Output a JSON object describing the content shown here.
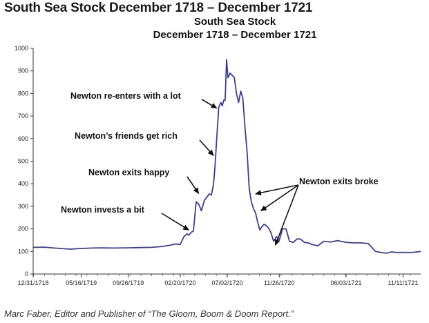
{
  "page": {
    "heading": "South Sea Stock December 1718 – December 1721",
    "caption": "Marc Faber, Editor and Publisher of “The Gloom, Boom & Doom Report.”"
  },
  "chart_data": {
    "type": "line",
    "title_lines": [
      "South Sea Stock",
      "December 1718 – December 1721"
    ],
    "xlabel": "",
    "ylabel": "",
    "ylim": [
      0,
      1000
    ],
    "yticks": [
      0,
      100,
      200,
      300,
      400,
      500,
      600,
      700,
      800,
      900,
      1000
    ],
    "xlim": [
      "1718-12-31",
      "1721-12-31"
    ],
    "xtick_labels": [
      "12/31/1718",
      "05/16/1719",
      "09/26/1719",
      "02/20/1720",
      "07/02/1720",
      "11/26/1720",
      "06/03/1721",
      "11/11/1721"
    ],
    "xtick_dates": [
      "1718-12-31",
      "1719-05-16",
      "1719-09-26",
      "1720-02-20",
      "1720-07-02",
      "1720-11-26",
      "1721-06-03",
      "1721-11-11"
    ],
    "grid": false,
    "line_color": "#3c3c9c",
    "series": [
      {
        "x": [
          "1718-12-31",
          "1719-01-31",
          "1719-03-01",
          "1719-04-15",
          "1719-05-16",
          "1719-06-15",
          "1719-07-15",
          "1719-08-15",
          "1719-09-26",
          "1719-10-31",
          "1719-12-01",
          "1719-12-31",
          "1720-01-25",
          "1720-02-05",
          "1720-02-20",
          "1720-03-01",
          "1720-03-10",
          "1720-03-15",
          "1720-03-22",
          "1720-03-28",
          "1720-04-05",
          "1720-04-12",
          "1720-04-20",
          "1720-04-28",
          "1720-05-05",
          "1720-05-12",
          "1720-05-18",
          "1720-05-24",
          "1720-05-28",
          "1720-06-02",
          "1720-06-08",
          "1720-06-14",
          "1720-06-18",
          "1720-06-22",
          "1720-06-26",
          "1720-06-30",
          "1720-07-04",
          "1720-07-10",
          "1720-07-16",
          "1720-07-22",
          "1720-07-28",
          "1720-08-03",
          "1720-08-09",
          "1720-08-15",
          "1720-08-21",
          "1720-08-27",
          "1720-09-02",
          "1720-09-08",
          "1720-09-14",
          "1720-09-20",
          "1720-09-26",
          "1720-10-02",
          "1720-10-08",
          "1720-10-14",
          "1720-10-20",
          "1720-10-26",
          "1720-11-02",
          "1720-11-10",
          "1720-11-18",
          "1720-11-26",
          "1720-12-05",
          "1720-12-15",
          "1720-12-25",
          "1721-01-05",
          "1721-01-15",
          "1721-01-25",
          "1721-02-05",
          "1721-02-15",
          "1721-03-01",
          "1721-03-15",
          "1721-04-01",
          "1721-04-20",
          "1721-05-10",
          "1721-06-03",
          "1721-06-25",
          "1721-07-15",
          "1721-08-05",
          "1721-08-25",
          "1721-09-10",
          "1721-09-25",
          "1721-10-10",
          "1721-10-25",
          "1721-11-11",
          "1721-11-25",
          "1721-12-10",
          "1721-12-31"
        ],
        "y": [
          118,
          119,
          115,
          110,
          113,
          115,
          116,
          115,
          116,
          117,
          118,
          122,
          128,
          133,
          131,
          165,
          178,
          172,
          185,
          190,
          320,
          310,
          280,
          325,
          340,
          355,
          350,
          395,
          470,
          600,
          740,
          760,
          745,
          770,
          770,
          950,
          870,
          890,
          880,
          870,
          800,
          760,
          810,
          780,
          650,
          540,
          380,
          320,
          290,
          270,
          230,
          195,
          210,
          220,
          215,
          205,
          185,
          145,
          165,
          150,
          200,
          200,
          145,
          140,
          155,
          155,
          140,
          138,
          130,
          125,
          145,
          142,
          148,
          140,
          138,
          138,
          135,
          100,
          95,
          92,
          98,
          95,
          96,
          95,
          96,
          100
        ]
      }
    ],
    "annotations": [
      {
        "text": "Newton re-enters with a lot",
        "x": "1720-06-02",
        "y": 735
      },
      {
        "text": "Newton’s friends get rich",
        "x": "1720-05-24",
        "y": 525
      },
      {
        "text": "Newton exits happy",
        "x": "1720-04-12",
        "y": 357
      },
      {
        "text": "Newton invests a bit",
        "x": "1720-03-15",
        "y": 195
      },
      {
        "text": "Newton exits broke",
        "points": [
          {
            "x": "1720-09-20",
            "y": 355
          },
          {
            "x": "1720-10-05",
            "y": 280
          },
          {
            "x": "1720-11-15",
            "y": 128
          }
        ]
      }
    ]
  }
}
